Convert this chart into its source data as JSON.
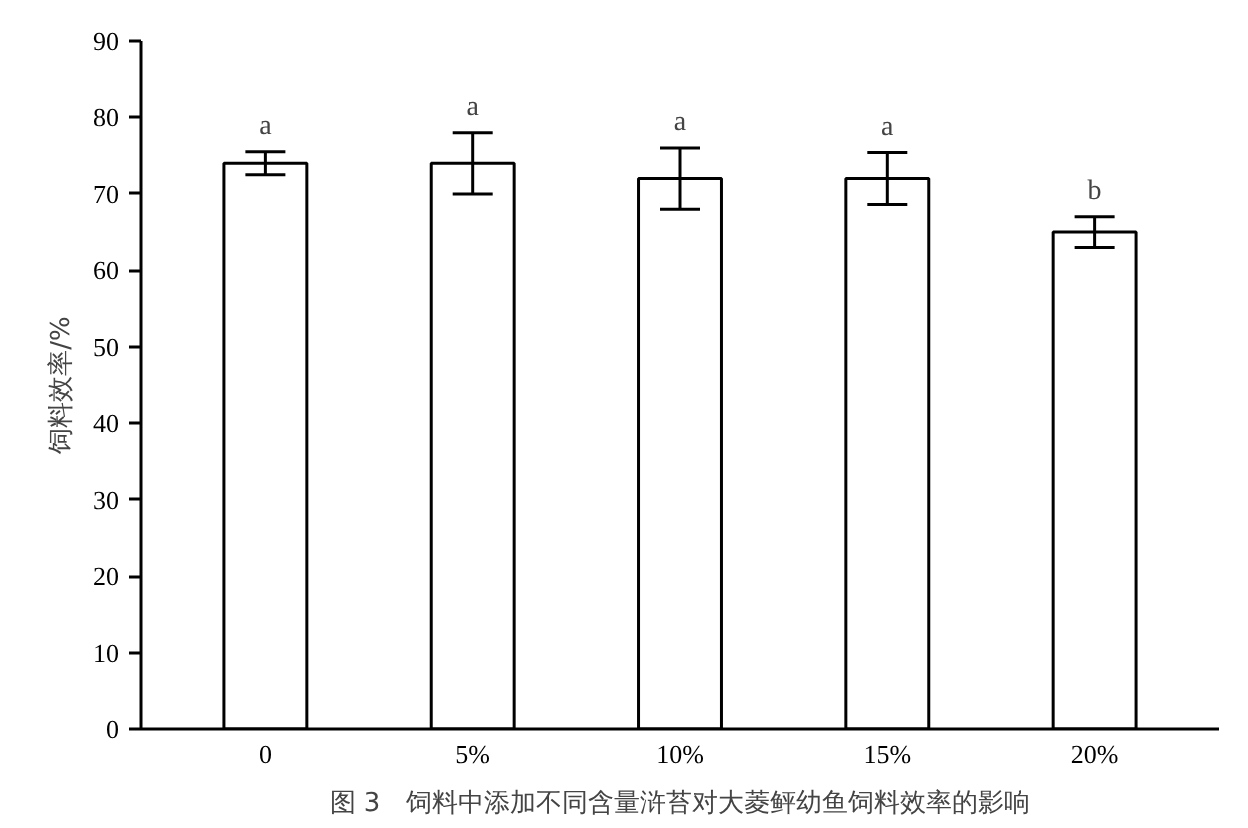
{
  "chart_data": {
    "type": "bar",
    "categories": [
      "0",
      "5%",
      "10%",
      "15%",
      "20%"
    ],
    "values": [
      74,
      74,
      72,
      72,
      65
    ],
    "errors": [
      1.5,
      4,
      4,
      3.4,
      2
    ],
    "color": "#ffffff",
    "ylabel": "饲料效率/%",
    "ylim": [
      0,
      90
    ],
    "yticks": [
      0,
      10,
      20,
      30,
      40,
      50,
      60,
      70,
      80,
      90
    ],
    "grid": false,
    "annotations": [
      {
        "text": "a",
        "x": "0",
        "y": 75.5
      },
      {
        "text": "a",
        "x": "5%",
        "y": 78
      },
      {
        "text": "a",
        "x": "10%",
        "y": 76
      },
      {
        "text": "a",
        "x": "15%",
        "y": 75.4
      },
      {
        "text": "b",
        "x": "20%",
        "y": 67
      },
      "图 3　饲料中添加不同含量浒苔对大菱鲆幼鱼饲料效率的影响"
    ]
  }
}
